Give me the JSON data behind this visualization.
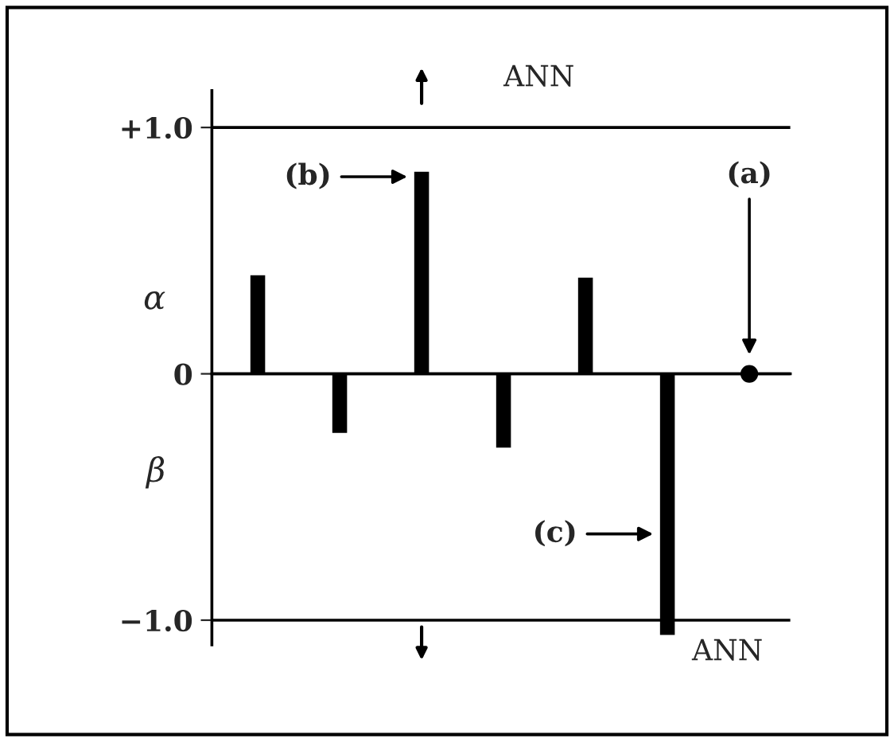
{
  "chart_data": {
    "type": "bar",
    "categories": [
      null,
      null,
      null,
      null,
      null,
      null,
      null
    ],
    "series": [
      {
        "color": "#000000",
        "values": [
          0.4,
          -0.24,
          0.82,
          -0.3,
          0.39,
          -1.06,
          null
        ]
      },
      {
        "type": "scatter",
        "color": "#000000",
        "values": [
          null,
          null,
          null,
          null,
          null,
          null,
          0
        ]
      }
    ],
    "ylim": [
      -1.1,
      1.15
    ],
    "yticks": [
      {
        "value": 1,
        "label": "+1.0"
      },
      0,
      {
        "value": -1,
        "label": "−1.0"
      }
    ],
    "annotations": [
      "ANN",
      "ANN",
      "α",
      "β",
      "(a)",
      "(b)",
      "(c)"
    ],
    "grid": "y",
    "legend": false,
    "marker": "circle"
  }
}
